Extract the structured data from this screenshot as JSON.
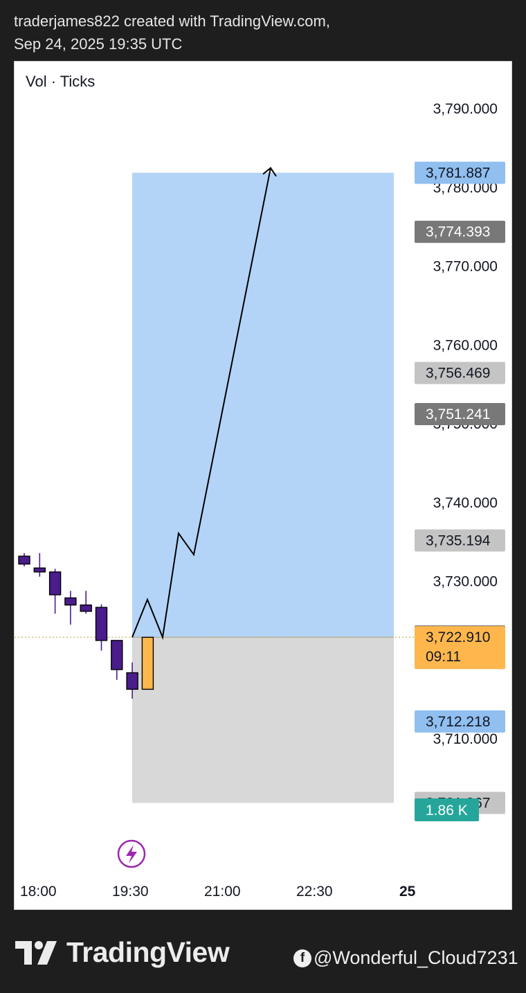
{
  "header": {
    "line1": "traderjames822 created with TradingView.com,",
    "line2": "Sep 24, 2025 19:35 UTC"
  },
  "indicator_label": "Vol · Ticks",
  "footer": {
    "brand": "TradingView",
    "handle": "@Wonderful_Cloud7231",
    "handle_icon": "facebook-icon"
  },
  "colors": {
    "bear_candle": "#4a1c8c",
    "current_candle": "#ffb74d",
    "target_zone": "#b3d4f7",
    "stop_zone": "#d8d8d8",
    "volume_badge": "#26a69a",
    "lightning_icon": "#9c27b0"
  },
  "chart_data": {
    "type": "candlestick",
    "x_ticks": [
      "18:00",
      "19:30",
      "21:00",
      "22:30",
      "25"
    ],
    "y_ticks": [
      "3,790.000",
      "3,780.000",
      "3,770.000",
      "3,760.000",
      "3,750.000",
      "3,740.000",
      "3,730.000",
      "3,710.000"
    ],
    "y_tick_values": [
      3790,
      3780,
      3770,
      3760,
      3750,
      3740,
      3730,
      3710
    ],
    "ylim": [
      3694.0,
      3796.0
    ],
    "candles": [
      {
        "open": 3733.2,
        "high": 3733.6,
        "low": 3731.9,
        "close": 3732.2
      },
      {
        "open": 3731.7,
        "high": 3733.6,
        "low": 3730.6,
        "close": 3731.2
      },
      {
        "open": 3731.2,
        "high": 3731.6,
        "low": 3725.9,
        "close": 3728.3
      },
      {
        "open": 3727.9,
        "high": 3728.8,
        "low": 3724.5,
        "close": 3727.0
      },
      {
        "open": 3727.0,
        "high": 3728.8,
        "low": 3725.9,
        "close": 3726.2
      },
      {
        "open": 3726.7,
        "high": 3727.1,
        "low": 3721.2,
        "close": 3722.5
      },
      {
        "open": 3722.5,
        "high": 3722.5,
        "low": 3717.5,
        "close": 3718.8
      },
      {
        "open": 3718.4,
        "high": 3719.7,
        "low": 3715.1,
        "close": 3716.3
      },
      {
        "open": 3722.9,
        "high": 3722.9,
        "low": 3716.3,
        "close": 3716.3,
        "current": true
      }
    ],
    "position": {
      "entry": 3722.91,
      "target": 3781.887,
      "stop": 3701.867
    },
    "projection_path": [
      3722.9,
      3727.7,
      3722.9,
      3736.1,
      3733.4,
      3782.5
    ],
    "price_labels": [
      {
        "text": "3,781.887",
        "value": 3781.887,
        "kind": "target"
      },
      {
        "text": "3,774.393",
        "value": 3774.393,
        "kind": "dark"
      },
      {
        "text": "3,756.469",
        "value": 3756.469,
        "kind": "light"
      },
      {
        "text": "3,751.241",
        "value": 3751.241,
        "kind": "dark"
      },
      {
        "text": "3,735.194",
        "value": 3735.194,
        "kind": "light"
      },
      {
        "text": "3,723.010",
        "value": 3723.01,
        "kind": "dark"
      },
      {
        "text": "3,722.910",
        "sub": "09:11",
        "value": 3722.91,
        "kind": "current"
      },
      {
        "text": "3,712.218",
        "value": 3712.218,
        "kind": "target"
      },
      {
        "text": "3,701.867",
        "value": 3701.867,
        "kind": "light"
      }
    ],
    "volume_badge": "1.86 K"
  }
}
